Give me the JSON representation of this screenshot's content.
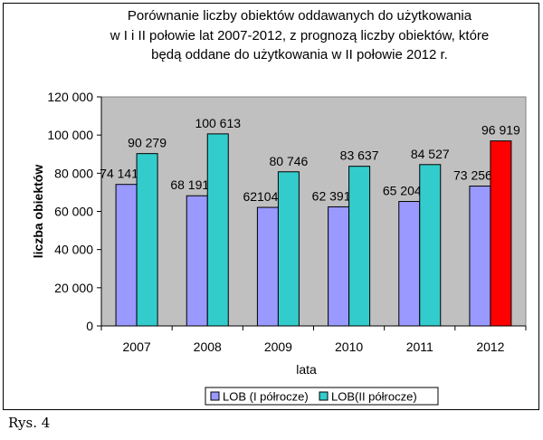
{
  "chart_data": {
    "type": "bar",
    "title_lines": [
      "Porównanie liczby obiektów oddawanych do użytkowania",
      "w I i II połowie lat 2007-2012,  z prognozą liczby obiektów, które",
      "będą oddane do użytkowania w II połowie 2012 r."
    ],
    "xlabel": "lata",
    "ylabel": "liczba obiektów",
    "ylim": [
      0,
      120000
    ],
    "ytick_step": 20000,
    "ytick_labels": [
      "0",
      "20 000",
      "40 000",
      "60 000",
      "80 000",
      "100 000",
      "120 000"
    ],
    "categories": [
      "2007",
      "2008",
      "2009",
      "2010",
      "2011",
      "2012"
    ],
    "grid": false,
    "legend_position": "bottom",
    "series": [
      {
        "name": "LOB (I półrocze)",
        "values": [
          74141,
          68191,
          62104,
          62391,
          65204,
          73256
        ],
        "labels": [
          "74 141",
          "68 191",
          "62104",
          "62 391",
          "65 204",
          "73 256"
        ],
        "color": "#9999FF"
      },
      {
        "name": "LOB(II półrocze)",
        "values": [
          90279,
          100613,
          80746,
          83637,
          84527,
          96919
        ],
        "labels": [
          "90 279",
          "100 613",
          "80 746",
          "83 637",
          "84 527",
          "96 919"
        ],
        "color": "#33CCCC",
        "highlight_index": 5,
        "highlight_color": "#FF0000"
      }
    ],
    "plot_background": "#C0C0C0"
  },
  "caption": "Rys. 4"
}
